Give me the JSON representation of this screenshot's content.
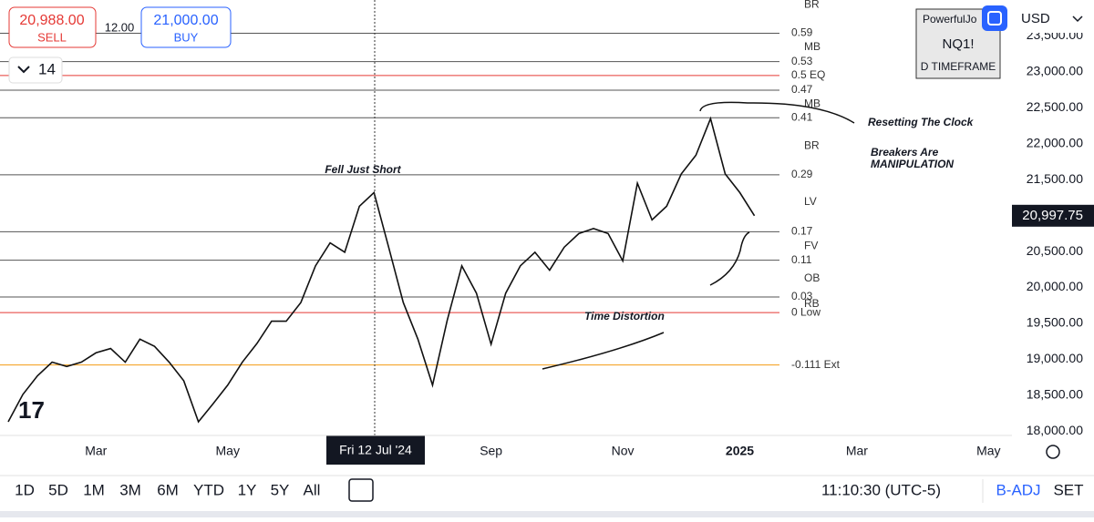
{
  "order_panel": {
    "sell_price": "20,988.00",
    "sell_label": "SELL",
    "spread": "12.00",
    "buy_price": "21,000.00",
    "buy_label": "BUY"
  },
  "collapse_count": "14",
  "indicator_box": {
    "name": "PowerfulJo",
    "symbol": "NQ1!",
    "timeframe": "D TIMEFRAME"
  },
  "currency": "USD",
  "crosshair_label": "Fri 12 Jul '24",
  "toolbar": {
    "ranges": [
      "1D",
      "5D",
      "1M",
      "3M",
      "6M",
      "YTD",
      "1Y",
      "5Y",
      "All"
    ],
    "clock": "11:10:30 (UTC-5)",
    "adjust": "B-ADJ",
    "settings": "SET"
  },
  "chart_data": {
    "type": "line",
    "categories": [
      null,
      null,
      null,
      null,
      null,
      null,
      "Mar",
      null,
      null,
      null,
      null,
      null,
      null,
      null,
      null,
      "May",
      null,
      null,
      null,
      null,
      null,
      null,
      null,
      null,
      null,
      null,
      null,
      null,
      null,
      null,
      null,
      null,
      null,
      "Sep",
      null,
      null,
      null,
      null,
      null,
      null,
      null,
      null,
      "Nov",
      null,
      null,
      null,
      null,
      null,
      null,
      null,
      "2025",
      null,
      null,
      null,
      null,
      null,
      null,
      null,
      "Mar",
      null,
      null,
      null,
      null,
      null,
      null,
      null,
      null,
      "May"
    ],
    "series": [
      {
        "name": "NQ1!",
        "color": "#111111",
        "values": [
          18130,
          18510,
          18770,
          18960,
          18900,
          18960,
          19090,
          19150,
          18960,
          19280,
          19180,
          18960,
          18700,
          18130,
          18380,
          18640,
          18960,
          19220,
          19530,
          19530,
          19790,
          20300,
          20620,
          20490,
          21130,
          21320,
          20560,
          19790,
          19280,
          18640,
          19540,
          20300,
          19920,
          19210,
          19920,
          20300,
          20490,
          20240,
          20560,
          20750,
          20820,
          20750,
          20370,
          21450,
          20940,
          21130,
          21580,
          21840,
          22350,
          21580,
          21320,
          20997.75,
          null,
          null,
          null,
          null,
          null,
          null,
          null,
          null,
          null,
          null,
          null,
          null,
          null,
          null,
          null,
          null
        ]
      }
    ],
    "last_price": {
      "value": 20997.75,
      "label": "20,997.75"
    },
    "ylim": [
      17940,
      24000
    ],
    "yticks": [
      {
        "value": 18000,
        "label": "18,000.00"
      },
      {
        "value": 18500,
        "label": "18,500.00"
      },
      {
        "value": 19000,
        "label": "19,000.00"
      },
      {
        "value": 19500,
        "label": "19,500.00"
      },
      {
        "value": 20000,
        "label": "20,000.00"
      },
      {
        "value": 20500,
        "label": "20,500.00"
      },
      {
        "value": 21000,
        "label": "21,000.00"
      },
      {
        "value": 21500,
        "label": "21,500.00"
      },
      {
        "value": 22000,
        "label": "22,000.00"
      },
      {
        "value": 22500,
        "label": "22,500.00"
      },
      {
        "value": 23000,
        "label": "23,000.00"
      },
      {
        "value": 23500,
        "label": "23,500.00"
      }
    ],
    "levels": [
      {
        "label": "0.59",
        "value": 23538,
        "color": "#555555"
      },
      {
        "label": "0.53",
        "value": 23142,
        "color": "#555555"
      },
      {
        "label": "0.5 EQ",
        "value": 22950,
        "color": "#e53935"
      },
      {
        "label": "0.47",
        "value": 22745,
        "color": "#555555"
      },
      {
        "label": "0.41",
        "value": 22361,
        "color": "#555555"
      },
      {
        "label": "0.29",
        "value": 21568,
        "color": "#555555"
      },
      {
        "label": "0.17",
        "value": 20775,
        "color": "#555555"
      },
      {
        "label": "0.11",
        "value": 20379,
        "color": "#555555"
      },
      {
        "label": "0.03",
        "value": 19867,
        "color": "#555555"
      },
      {
        "label": "0 Low",
        "value": 19650,
        "color": "#e53935"
      },
      {
        "label": "-0.111 Ext",
        "value": 18921,
        "color": "#f39c12"
      }
    ],
    "zones": [
      {
        "label": "BR",
        "value": 23934
      },
      {
        "label": "MB",
        "value": 23346
      },
      {
        "label": "MB",
        "value": 22553
      },
      {
        "label": "BR",
        "value": 21965
      },
      {
        "label": "LV",
        "value": 21185
      },
      {
        "label": "FV",
        "value": 20571
      },
      {
        "label": "OB",
        "value": 20123
      },
      {
        "label": "RB",
        "value": 19765
      }
    ],
    "annotations": [
      "Fell Just Short",
      "Resetting The Clock",
      "Breakers Are",
      "MANIPULATION",
      "Time Distortion"
    ]
  }
}
